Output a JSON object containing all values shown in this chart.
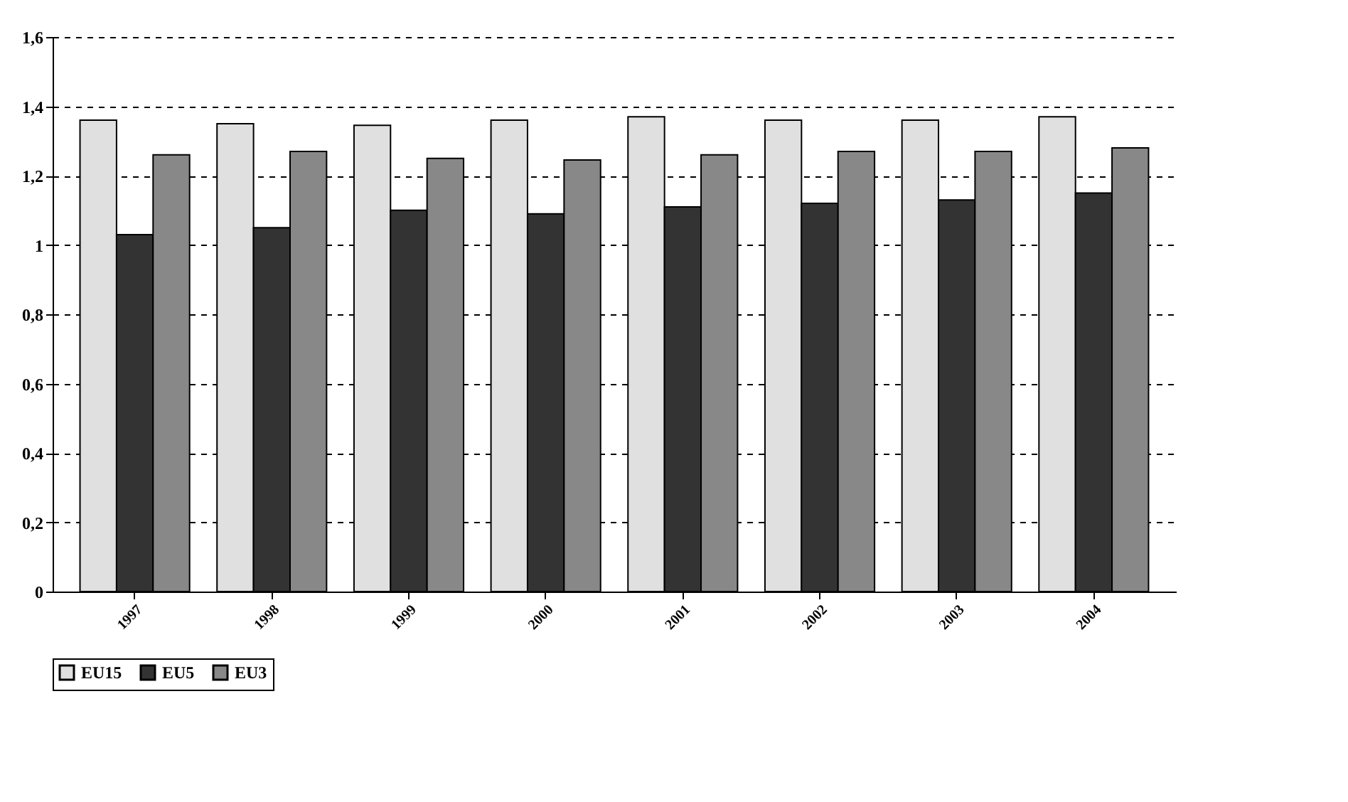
{
  "chart_data": {
    "type": "bar",
    "categories": [
      "1997",
      "1998",
      "1999",
      "2000",
      "2001",
      "2002",
      "2003",
      "2004"
    ],
    "series": [
      {
        "name": "EU15",
        "color": "#e0e0e0",
        "values": [
          1.36,
          1.35,
          1.345,
          1.36,
          1.37,
          1.36,
          1.36,
          1.37
        ]
      },
      {
        "name": "EU5",
        "color": "#333333",
        "values": [
          1.03,
          1.05,
          1.1,
          1.09,
          1.11,
          1.12,
          1.13,
          1.15
        ]
      },
      {
        "name": "EU3",
        "color": "#888888",
        "values": [
          1.26,
          1.27,
          1.25,
          1.245,
          1.26,
          1.27,
          1.27,
          1.28
        ]
      }
    ],
    "ylim": [
      0,
      1.6
    ],
    "yticks": [
      0,
      {
        "value": 0.2,
        "label": "0,2"
      },
      {
        "value": 0.4,
        "label": "0,4"
      },
      {
        "value": 0.6,
        "label": "0,6"
      },
      {
        "value": 0.8,
        "label": "0,8"
      },
      1,
      {
        "value": 1.2,
        "label": "1,2"
      },
      {
        "value": 1.4,
        "label": "1,4"
      },
      {
        "value": 1.6,
        "label": "1,6"
      }
    ],
    "grid": "y",
    "legend": "bottom",
    "line_style": "dashed"
  }
}
